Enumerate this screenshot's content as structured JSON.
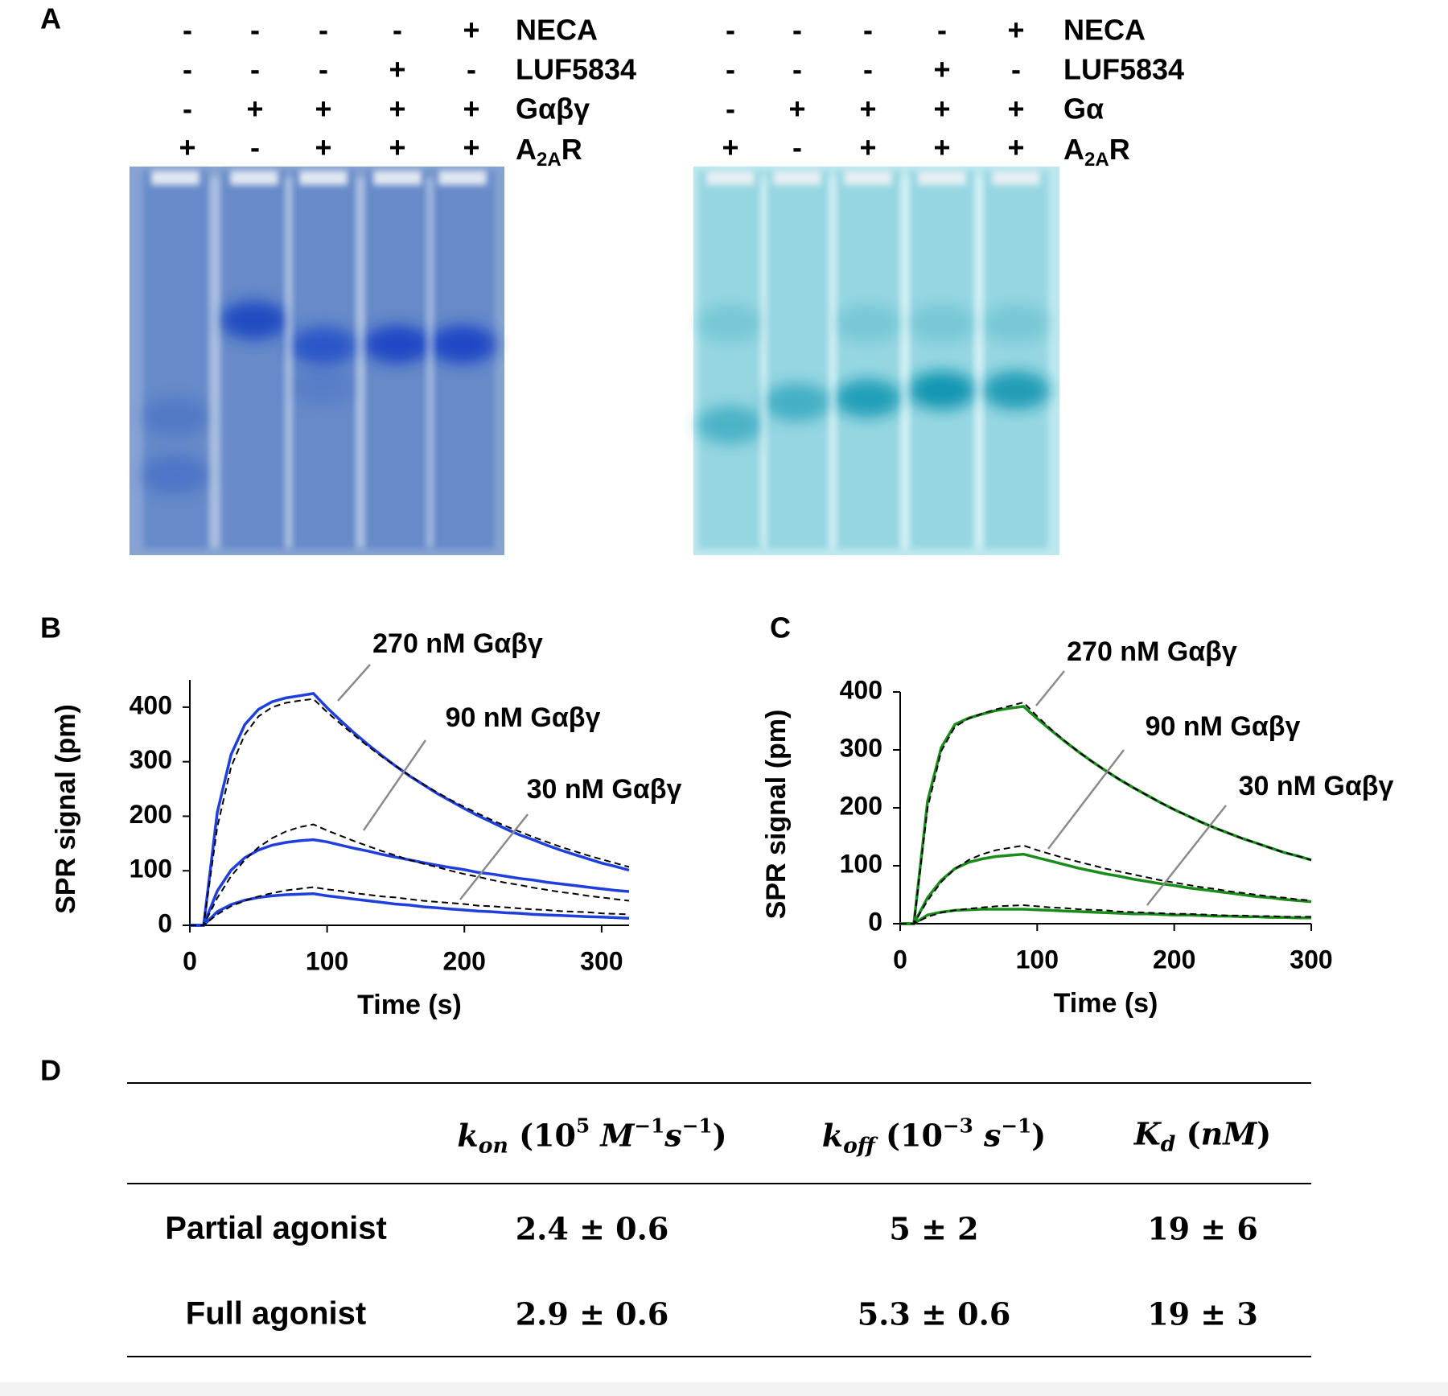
{
  "panels": [
    "A",
    "B",
    "C",
    "D"
  ],
  "gels": [
    {
      "rows": [
        {
          "label": "NECA",
          "signs": [
            "-",
            "-",
            "-",
            "-",
            "+"
          ]
        },
        {
          "label": "LUF5834",
          "signs": [
            "-",
            "-",
            "-",
            "+",
            "-"
          ]
        },
        {
          "label": "Gαβγ",
          "signs": [
            "-",
            "+",
            "+",
            "+",
            "+"
          ]
        },
        {
          "label_parts": [
            "A",
            "2A",
            "R"
          ],
          "signs": [
            "+",
            "-",
            "+",
            "+",
            "+"
          ]
        }
      ]
    },
    {
      "rows": [
        {
          "label": "NECA",
          "signs": [
            "-",
            "-",
            "-",
            "-",
            "+"
          ]
        },
        {
          "label": "LUF5834",
          "signs": [
            "-",
            "-",
            "-",
            "+",
            "-"
          ]
        },
        {
          "label": "Gα",
          "signs": [
            "-",
            "+",
            "+",
            "+",
            "+"
          ]
        },
        {
          "label_parts": [
            "A",
            "2A",
            "R"
          ],
          "signs": [
            "+",
            "-",
            "+",
            "+",
            "+"
          ]
        }
      ]
    }
  ],
  "chart_data": [
    {
      "type": "line",
      "xlabel": "Time (s)",
      "ylabel": "SPR signal (pm)",
      "x": [
        0,
        10,
        20,
        30,
        40,
        50,
        60,
        70,
        80,
        90,
        100,
        110,
        120,
        130,
        140,
        150,
        160,
        170,
        180,
        190,
        200,
        210,
        220,
        230,
        240,
        250,
        260,
        270,
        280,
        290,
        300,
        310,
        320
      ],
      "xlim": [
        0,
        320
      ],
      "xticks": [
        0,
        100,
        200,
        300
      ],
      "ylim": [
        0,
        450
      ],
      "yticks": [
        0,
        100,
        200,
        300,
        400
      ],
      "series": [
        {
          "name": "270 nM Gαβγ",
          "color": "#1f3fdc",
          "values": [
            0,
            0,
            207,
            313,
            368,
            396,
            410,
            417,
            421,
            425,
            399,
            375,
            352,
            331,
            311,
            292,
            274,
            258,
            242,
            228,
            214,
            201,
            189,
            177,
            166,
            157,
            147,
            138,
            130,
            122,
            114,
            108,
            101
          ]
        },
        {
          "name": "90 nM Gαβγ",
          "color": "#1f3fdc",
          "values": [
            0,
            0,
            63,
            101,
            124,
            138,
            147,
            152,
            155,
            157,
            153,
            147,
            141,
            136,
            130,
            125,
            120,
            115,
            110,
            106,
            102,
            97,
            94,
            90,
            86,
            83,
            79,
            76,
            73,
            70,
            67,
            64,
            62
          ]
        },
        {
          "name": "30 nM Gαβγ",
          "color": "#1f3fdc",
          "values": [
            0,
            0,
            25,
            38,
            46,
            51,
            54,
            56,
            57,
            58,
            54,
            51,
            48,
            45,
            42,
            39,
            37,
            34,
            32,
            30,
            28,
            26,
            25,
            23,
            22,
            20,
            19,
            18,
            17,
            16,
            15,
            14,
            13
          ]
        },
        {
          "color": "#000000",
          "dash": true,
          "values": [
            0,
            0,
            180,
            290,
            350,
            383,
            400,
            408,
            412,
            415,
            391,
            369,
            348,
            328,
            309,
            292,
            275,
            259,
            244,
            230,
            217,
            205,
            193,
            182,
            172,
            162,
            153,
            144,
            136,
            128,
            121,
            114,
            107
          ]
        },
        {
          "color": "#000000",
          "dash": true,
          "values": [
            0,
            0,
            50,
            90,
            120,
            143,
            160,
            172,
            180,
            185,
            174,
            164,
            154,
            145,
            136,
            128,
            120,
            113,
            107,
            100,
            94,
            89,
            83,
            78,
            74,
            69,
            65,
            61,
            58,
            54,
            51,
            48,
            45
          ]
        },
        {
          "color": "#000000",
          "dash": true,
          "values": [
            0,
            0,
            20,
            35,
            45,
            53,
            59,
            64,
            67,
            70,
            66,
            63,
            59,
            56,
            53,
            51,
            48,
            45,
            43,
            41,
            39,
            36,
            35,
            33,
            31,
            29,
            28,
            26,
            25,
            24,
            22,
            21,
            20
          ]
        }
      ]
    },
    {
      "type": "line",
      "xlabel": "Time (s)",
      "ylabel": "SPR signal (pm)",
      "x": [
        0,
        10,
        20,
        30,
        40,
        50,
        60,
        70,
        80,
        90,
        100,
        110,
        120,
        130,
        140,
        150,
        160,
        170,
        180,
        190,
        200,
        210,
        220,
        230,
        240,
        250,
        260,
        270,
        280,
        290,
        300
      ],
      "xlim": [
        0,
        300
      ],
      "xticks": [
        0,
        100,
        200,
        300
      ],
      "ylim": [
        0,
        400
      ],
      "yticks": [
        0,
        100,
        200,
        300,
        400
      ],
      "series": [
        {
          "name": "270 nM Gαβγ",
          "color": "#1a8c1a",
          "values": [
            0,
            0,
            212,
            304,
            344,
            355,
            362,
            368,
            372,
            375,
            354,
            334,
            315,
            297,
            280,
            264,
            249,
            235,
            222,
            209,
            197,
            186,
            175,
            165,
            156,
            147,
            139,
            131,
            123,
            117,
            110
          ]
        },
        {
          "name": "90 nM Gαβγ",
          "color": "#1a8c1a",
          "values": [
            0,
            0,
            45,
            75,
            95,
            106,
            112,
            116,
            118,
            120,
            114,
            108,
            102,
            96,
            91,
            86,
            82,
            77,
            73,
            69,
            66,
            62,
            59,
            56,
            53,
            50,
            47,
            45,
            42,
            40,
            38
          ]
        },
        {
          "name": "30 nM Gαβγ",
          "color": "#1a8c1a",
          "values": [
            0,
            0,
            15,
            20,
            23,
            24,
            25,
            25,
            25,
            25,
            24,
            23,
            22,
            21,
            20,
            19,
            18,
            17,
            17,
            16,
            15,
            15,
            14,
            13,
            13,
            12,
            12,
            11,
            11,
            10,
            10
          ]
        },
        {
          "color": "#000000",
          "dash": true,
          "values": [
            0,
            0,
            200,
            298,
            340,
            354,
            363,
            370,
            376,
            382,
            358,
            336,
            316,
            297,
            280,
            264,
            249,
            235,
            222,
            209,
            197,
            186,
            175,
            165,
            156,
            147,
            139,
            131,
            123,
            117,
            110
          ]
        },
        {
          "color": "#000000",
          "dash": true,
          "values": [
            0,
            0,
            40,
            72,
            95,
            110,
            120,
            127,
            131,
            135,
            127,
            120,
            113,
            107,
            101,
            95,
            90,
            85,
            80,
            75,
            71,
            67,
            63,
            60,
            56,
            53,
            50,
            47,
            45,
            42,
            40
          ]
        },
        {
          "color": "#000000",
          "dash": true,
          "values": [
            0,
            0,
            12,
            19,
            23,
            26,
            28,
            30,
            31,
            32,
            30,
            28,
            27,
            25,
            24,
            23,
            21,
            20,
            19,
            18,
            17,
            17,
            16,
            15,
            14,
            14,
            13,
            13,
            12,
            12,
            12
          ]
        }
      ]
    }
  ],
  "table": {
    "header": [
      [
        {
          "text": "k",
          "style": "i"
        },
        {
          "text": "on",
          "style": "sub"
        },
        {
          "text": " (10"
        },
        {
          "text": "5",
          "style": "sup"
        },
        {
          "text": " M",
          "style": "i"
        },
        {
          "text": "−1",
          "style": "sup"
        },
        {
          "text": "s",
          "style": "i"
        },
        {
          "text": "−1",
          "style": "sup"
        },
        {
          "text": ")"
        }
      ],
      [
        {
          "text": "k",
          "style": "i"
        },
        {
          "text": "off",
          "style": "sub"
        },
        {
          "text": " (10"
        },
        {
          "text": "−3",
          "style": "sup"
        },
        {
          "text": " s",
          "style": "i"
        },
        {
          "text": "−1",
          "style": "sup"
        },
        {
          "text": ")"
        }
      ],
      [
        {
          "text": "K",
          "style": "i"
        },
        {
          "text": "d",
          "style": "sub"
        },
        {
          "text": " ("
        },
        {
          "text": "nM",
          "style": "i"
        },
        {
          "text": ")"
        }
      ]
    ],
    "rows": [
      [
        "Partial agonist",
        "2.4 ± 0.6",
        "5 ± 2",
        "19 ± 6"
      ],
      [
        "Full agonist",
        "2.9 ± 0.6",
        "5.3 ± 0.6",
        "19 ± 3"
      ]
    ]
  }
}
